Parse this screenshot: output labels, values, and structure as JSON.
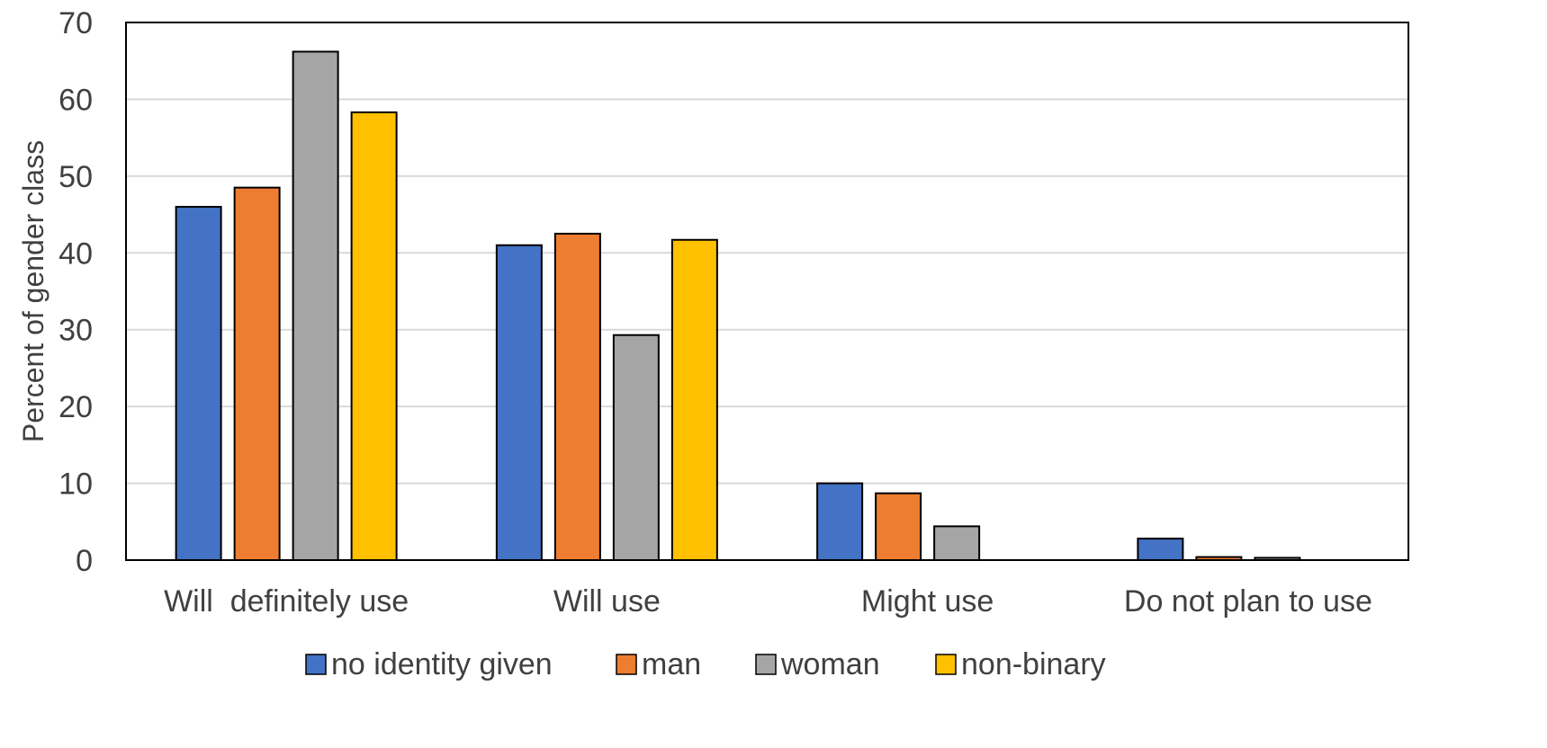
{
  "chart_data": {
    "type": "bar",
    "title": "",
    "xlabel": "",
    "ylabel": "Percent of gender class",
    "ylim": [
      0,
      70
    ],
    "yticks": [
      0,
      10,
      20,
      30,
      40,
      50,
      60,
      70
    ],
    "grid": true,
    "legend_position": "bottom",
    "categories": [
      "Will  definitely use",
      "Will use",
      "Might use",
      "Do not plan to use"
    ],
    "series": [
      {
        "name": "no identity given",
        "color": "#4472C4",
        "values": [
          46,
          41,
          10,
          2.8
        ]
      },
      {
        "name": "man",
        "color": "#ED7D31",
        "values": [
          48.5,
          42.5,
          8.7,
          0.4
        ]
      },
      {
        "name": "woman",
        "color": "#A5A5A5",
        "values": [
          66.2,
          29.3,
          4.4,
          0.3
        ]
      },
      {
        "name": "non-binary",
        "color": "#FFC000",
        "values": [
          58.3,
          41.7,
          0,
          0
        ]
      }
    ]
  }
}
